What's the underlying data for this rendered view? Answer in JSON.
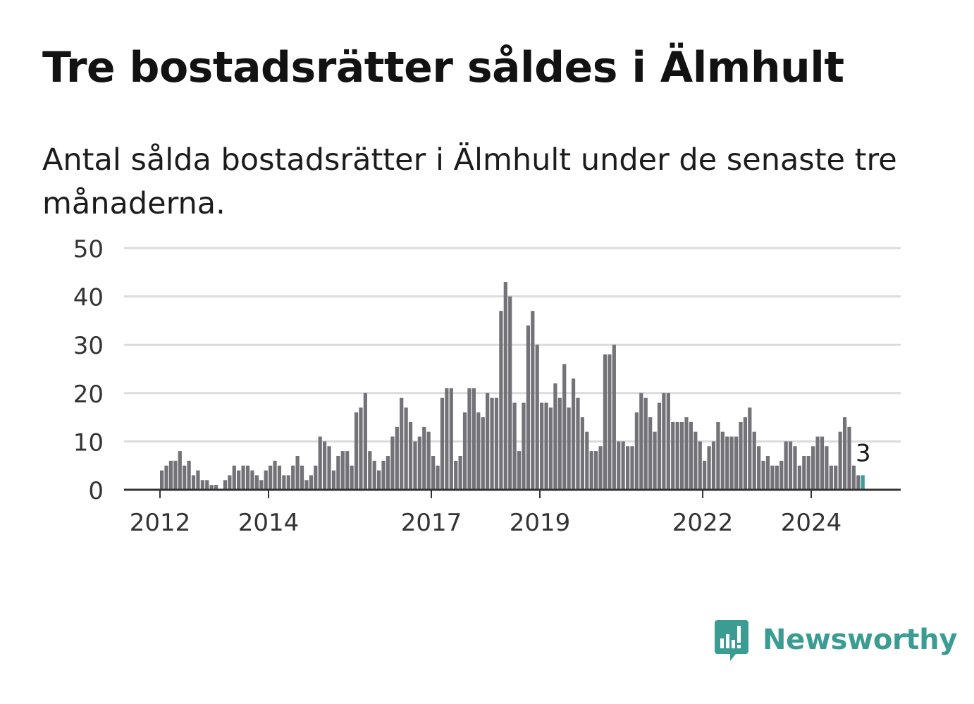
{
  "header": {
    "title": "Tre bostadsrätter såldes i Älmhult",
    "subtitle": "Antal sålda bostadsrätter i Älmhult under de senaste tre månaderna."
  },
  "brand": {
    "name": "Newsworthy",
    "icon": "newsworthy-bar-chart-speech-bubble-icon"
  },
  "colors": {
    "bars": "#737278",
    "highlight": "#3a9f96",
    "grid": "#dcdcdc",
    "axis": "#333333",
    "text": "#333333",
    "brand": "#3b9c93"
  },
  "chart_data": {
    "type": "bar",
    "title": "Tre bostadsrätter såldes i Älmhult",
    "subtitle": "Antal sålda bostadsrätter i Älmhult under de senaste tre månaderna.",
    "xlabel": "",
    "ylabel": "",
    "ylim": [
      0,
      50
    ],
    "yticks": [
      0,
      10,
      20,
      30,
      40,
      50
    ],
    "xticks": [
      "2012",
      "2014",
      "2017",
      "2019",
      "2022",
      "2024"
    ],
    "grid": true,
    "first_month": "2012-01",
    "values": [
      4,
      5,
      6,
      6,
      8,
      5,
      6,
      3,
      4,
      2,
      2,
      1,
      1,
      0,
      2,
      3,
      5,
      4,
      5,
      5,
      4,
      3,
      2,
      4,
      5,
      6,
      5,
      3,
      3,
      5,
      7,
      5,
      2,
      3,
      5,
      11,
      10,
      9,
      4,
      7,
      8,
      8,
      5,
      16,
      17,
      20,
      8,
      6,
      4,
      6,
      7,
      11,
      13,
      19,
      17,
      14,
      10,
      11,
      13,
      12,
      7,
      5,
      19,
      21,
      21,
      6,
      7,
      16,
      21,
      21,
      16,
      15,
      20,
      19,
      19,
      37,
      43,
      40,
      18,
      8,
      18,
      34,
      37,
      30,
      18,
      18,
      17,
      22,
      19,
      26,
      17,
      23,
      19,
      15,
      12,
      8,
      8,
      9,
      28,
      28,
      30,
      10,
      10,
      9,
      9,
      16,
      20,
      19,
      15,
      12,
      18,
      20,
      20,
      14,
      14,
      14,
      15,
      14,
      12,
      10,
      6,
      9,
      10,
      14,
      12,
      11,
      11,
      11,
      14,
      15,
      17,
      12,
      9,
      6,
      7,
      5,
      5,
      6,
      10,
      10,
      9,
      5,
      7,
      7,
      9,
      11,
      11,
      9,
      5,
      5,
      12,
      15,
      13,
      5,
      3,
      3
    ],
    "highlight_last": true,
    "annotation": {
      "label": "3",
      "value": 3,
      "period": "2024-12"
    }
  }
}
